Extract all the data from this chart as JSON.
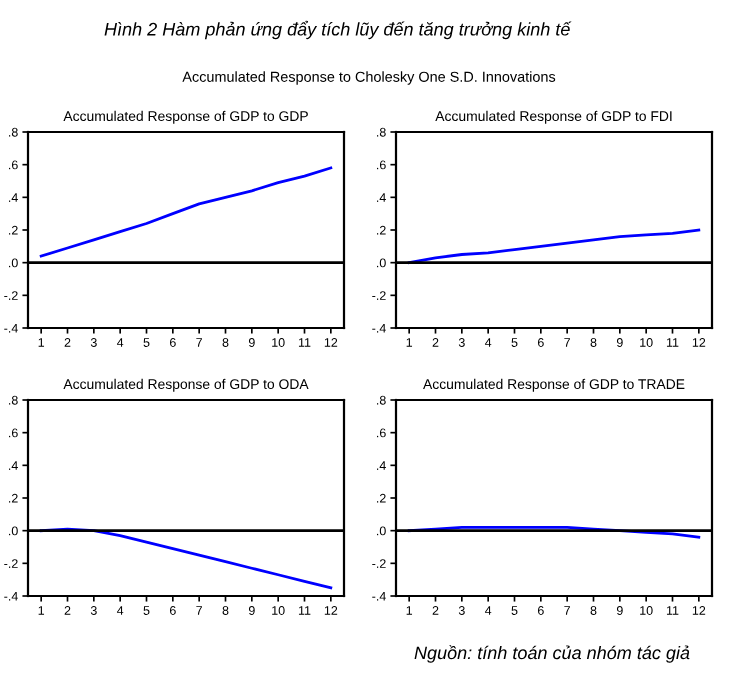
{
  "chart_data": [
    {
      "type": "line",
      "title": "Accumulated Response of GDP to GDP",
      "annotations": [
        "Hình 2 Hàm phản ứng đẩy tích lũy đến tăng trưởng kinh tế",
        "Accumulated Response to Cholesky One S.D. Innovations"
      ],
      "categories": [
        "1",
        "2",
        "3",
        "4",
        "5",
        "6",
        "7",
        "8",
        "9",
        "10",
        "11",
        "12"
      ],
      "series": [
        {
          "color": "#0000ff",
          "values": [
            0.04,
            0.09,
            0.14,
            0.19,
            0.24,
            0.3,
            0.36,
            0.4,
            0.44,
            0.49,
            0.53,
            0.58
          ]
        }
      ],
      "ylim": [
        -0.4,
        0.8
      ],
      "yticks": [
        {
          "value": -0.4,
          "label": "-.4"
        },
        {
          "value": -0.2,
          "label": "-.2"
        },
        {
          "value": 0,
          "label": ".0"
        },
        {
          "value": 0.2,
          "label": ".2"
        },
        {
          "value": 0.4,
          "label": ".4"
        },
        {
          "value": 0.6,
          "label": ".6"
        },
        {
          "value": 0.8,
          "label": ".8"
        }
      ],
      "ref_lines": [
        {
          "axis": "y",
          "value": 0,
          "color": "#000000"
        }
      ]
    },
    {
      "type": "line",
      "title": "Accumulated Response of GDP to FDI",
      "categories": [
        "1",
        "2",
        "3",
        "4",
        "5",
        "6",
        "7",
        "8",
        "9",
        "10",
        "11",
        "12"
      ],
      "series": [
        {
          "color": "#0000ff",
          "values": [
            0.0,
            0.03,
            0.05,
            0.06,
            0.08,
            0.1,
            0.12,
            0.14,
            0.16,
            0.17,
            0.18,
            0.2
          ]
        }
      ],
      "ylim": [
        -0.4,
        0.8
      ],
      "yticks": [
        {
          "value": -0.4,
          "label": "-.4"
        },
        {
          "value": -0.2,
          "label": "-.2"
        },
        {
          "value": 0,
          "label": ".0"
        },
        {
          "value": 0.2,
          "label": ".2"
        },
        {
          "value": 0.4,
          "label": ".4"
        },
        {
          "value": 0.6,
          "label": ".6"
        },
        {
          "value": 0.8,
          "label": ".8"
        }
      ],
      "ref_lines": [
        {
          "axis": "y",
          "value": 0,
          "color": "#000000"
        }
      ]
    },
    {
      "type": "line",
      "title": "Accumulated Response of GDP to ODA",
      "categories": [
        "1",
        "2",
        "3",
        "4",
        "5",
        "6",
        "7",
        "8",
        "9",
        "10",
        "11",
        "12"
      ],
      "series": [
        {
          "color": "#0000ff",
          "values": [
            0.0,
            0.01,
            0.0,
            -0.03,
            -0.07,
            -0.11,
            -0.15,
            -0.19,
            -0.23,
            -0.27,
            -0.31,
            -0.35
          ]
        }
      ],
      "ylim": [
        -0.4,
        0.8
      ],
      "yticks": [
        {
          "value": -0.4,
          "label": "-.4"
        },
        {
          "value": -0.2,
          "label": "-.2"
        },
        {
          "value": 0,
          "label": ".0"
        },
        {
          "value": 0.2,
          "label": ".2"
        },
        {
          "value": 0.4,
          "label": ".4"
        },
        {
          "value": 0.6,
          "label": ".6"
        },
        {
          "value": 0.8,
          "label": ".8"
        }
      ],
      "ref_lines": [
        {
          "axis": "y",
          "value": 0,
          "color": "#000000"
        }
      ]
    },
    {
      "type": "line",
      "title": "Accumulated Response of GDP to TRADE",
      "annotations": [
        "Nguồn: tính toán của nhóm tác giả"
      ],
      "categories": [
        "1",
        "2",
        "3",
        "4",
        "5",
        "6",
        "7",
        "8",
        "9",
        "10",
        "11",
        "12"
      ],
      "series": [
        {
          "color": "#0000ff",
          "values": [
            0.0,
            0.01,
            0.02,
            0.02,
            0.02,
            0.02,
            0.02,
            0.01,
            0.0,
            -0.01,
            -0.02,
            -0.04
          ]
        }
      ],
      "ylim": [
        -0.4,
        0.8
      ],
      "yticks": [
        {
          "value": -0.4,
          "label": "-.4"
        },
        {
          "value": -0.2,
          "label": "-.2"
        },
        {
          "value": 0,
          "label": ".0"
        },
        {
          "value": 0.2,
          "label": ".2"
        },
        {
          "value": 0.4,
          "label": ".4"
        },
        {
          "value": 0.6,
          "label": ".6"
        },
        {
          "value": 0.8,
          "label": ".8"
        }
      ],
      "ref_lines": [
        {
          "axis": "y",
          "value": 0,
          "color": "#000000"
        }
      ]
    }
  ]
}
